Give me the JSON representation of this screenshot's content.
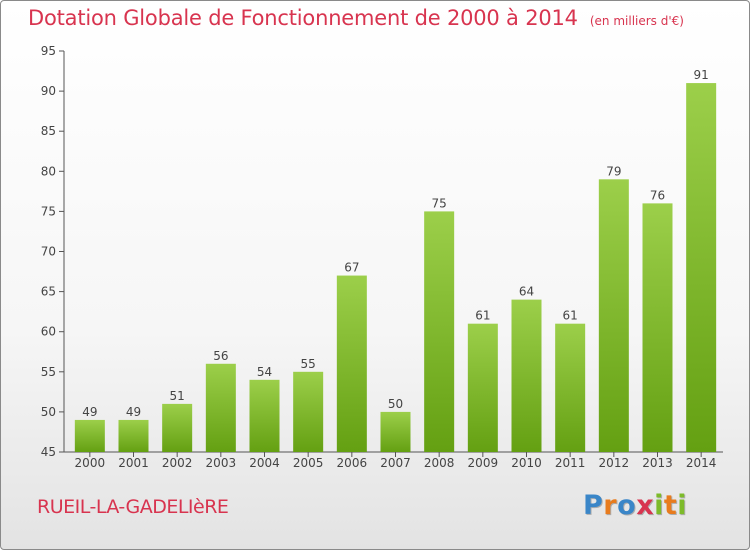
{
  "title": "Dotation Globale de Fonctionnement de 2000 à 2014",
  "unit": "(en milliers d'€)",
  "commune": "RUEIL-LA-GADELIèRE",
  "logo": {
    "letters": [
      "P",
      "r",
      "o",
      "x",
      "i",
      "t",
      "i"
    ],
    "colors": [
      "#3a86c8",
      "#e87c1e",
      "#3a86c8",
      "#d8344f",
      "#7dbb2a",
      "#e87c1e",
      "#7dbb2a"
    ]
  },
  "colors": {
    "accent": "#d8344f",
    "bar_light": "#9ccf4a",
    "bar_dark": "#64a012"
  },
  "chart_data": {
    "type": "bar",
    "title": "Dotation Globale de Fonctionnement de 2000 à 2014",
    "subtitle": "(en milliers d'€)",
    "categories": [
      "2000",
      "2001",
      "2002",
      "2003",
      "2004",
      "2005",
      "2006",
      "2007",
      "2008",
      "2009",
      "2010",
      "2011",
      "2012",
      "2013",
      "2014"
    ],
    "values": [
      49,
      49,
      51,
      56,
      54,
      55,
      67,
      50,
      75,
      61,
      64,
      61,
      79,
      76,
      91
    ],
    "ylim": [
      45,
      95
    ],
    "yticks": [
      45,
      50,
      55,
      60,
      65,
      70,
      75,
      80,
      85,
      90,
      95
    ],
    "grid": false,
    "xlabel": "",
    "ylabel": ""
  }
}
